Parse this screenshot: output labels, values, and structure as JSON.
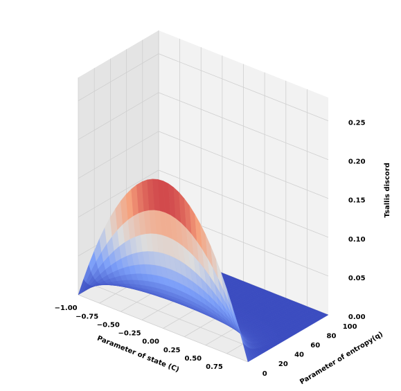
{
  "chart_data": {
    "type": "surface3d",
    "colormap": "coolwarm",
    "grid": true,
    "x_axis": {
      "label": "Parameter of state (C)",
      "range": [
        -1,
        1
      ],
      "ticks": [
        "−1.00",
        "−0.75",
        "−0.50",
        "−0.25",
        "0.00",
        "0.25",
        "0.50",
        "0.75"
      ],
      "tick_values": [
        -1.0,
        -0.75,
        -0.5,
        -0.25,
        0.0,
        0.25,
        0.5,
        0.75
      ]
    },
    "y_axis": {
      "label": "Parameter of entropy(q)",
      "range": [
        0,
        100
      ],
      "ticks": [
        "0",
        "20",
        "40",
        "60",
        "80",
        "100"
      ],
      "tick_values": [
        0,
        20,
        40,
        60,
        80,
        100
      ]
    },
    "z_axis": {
      "label": "Tsallis discord",
      "range": [
        0,
        0.28
      ],
      "ticks": [
        "0.00",
        "0.05",
        "0.10",
        "0.15",
        "0.20",
        "0.25"
      ],
      "tick_values": [
        0,
        0.05,
        0.1,
        0.15,
        0.2,
        0.25
      ]
    },
    "peak_discord": 0.19,
    "peak_state_C": 0.0,
    "peak_entropy_q": 0
  }
}
